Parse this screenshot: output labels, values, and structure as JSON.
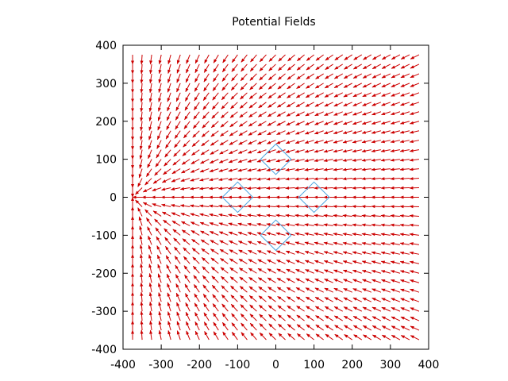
{
  "chart_data": {
    "type": "quiver",
    "title": "Potential Fields",
    "xlabel": "",
    "ylabel": "",
    "xlim": [
      -400,
      400
    ],
    "ylim": [
      -400,
      400
    ],
    "xticks": [
      -400,
      -300,
      -200,
      -100,
      0,
      100,
      200,
      300,
      400
    ],
    "yticks": [
      -400,
      -300,
      -200,
      -100,
      0,
      100,
      200,
      300,
      400
    ],
    "xtick_labels": [
      "-400",
      "-300",
      "-200",
      "-100",
      "0",
      "100",
      "200",
      "300",
      "400"
    ],
    "ytick_labels": [
      "400",
      "300",
      "200",
      "100",
      "0",
      "-100",
      "-200",
      "-300",
      "-400"
    ],
    "grid": false,
    "arrow_color": "#cc0000",
    "obstacle_color": "#4aa3df",
    "vector_field": {
      "x_start": -375,
      "y_start": -375,
      "step": 25,
      "count": 31,
      "attractor": [
        -375,
        0
      ]
    },
    "obstacles": [
      {
        "center": [
          0,
          100
        ],
        "half_width": 40,
        "half_height": 40
      },
      {
        "center": [
          -100,
          0
        ],
        "half_width": 40,
        "half_height": 40
      },
      {
        "center": [
          100,
          0
        ],
        "half_width": 40,
        "half_height": 40
      },
      {
        "center": [
          0,
          -100
        ],
        "half_width": 40,
        "half_height": 40
      }
    ]
  }
}
